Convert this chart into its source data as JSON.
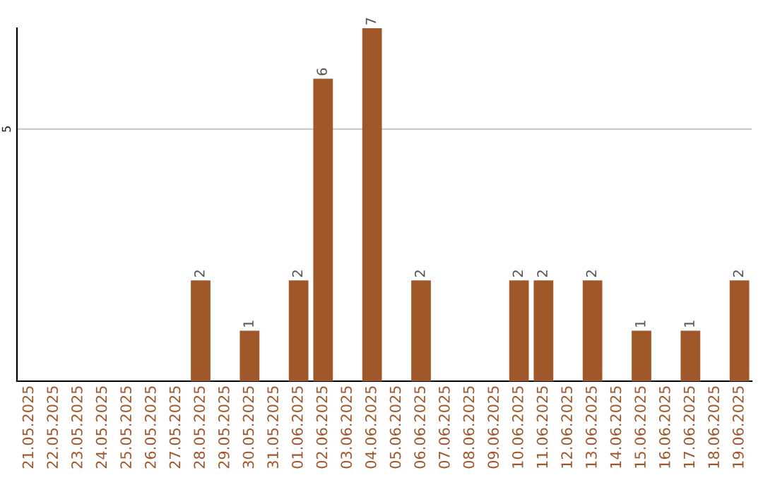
{
  "chart_data": {
    "type": "bar",
    "categories": [
      "21.05.2025",
      "22.05.2025",
      "23.05.2025",
      "24.05.2025",
      "25.05.2025",
      "26.05.2025",
      "27.05.2025",
      "28.05.2025",
      "29.05.2025",
      "30.05.2025",
      "31.05.2025",
      "01.06.2025",
      "02.06.2025",
      "03.06.2025",
      "04.06.2025",
      "05.06.2025",
      "06.06.2025",
      "07.06.2025",
      "08.06.2025",
      "09.06.2025",
      "10.06.2025",
      "11.06.2025",
      "12.06.2025",
      "13.06.2025",
      "14.06.2025",
      "15.06.2025",
      "16.06.2025",
      "17.06.2025",
      "18.06.2025",
      "19.06.2025"
    ],
    "values": [
      0,
      0,
      0,
      0,
      0,
      0,
      0,
      2,
      0,
      1,
      0,
      2,
      6,
      0,
      7,
      0,
      2,
      0,
      0,
      0,
      2,
      2,
      0,
      2,
      0,
      1,
      0,
      1,
      0,
      2
    ],
    "value_labels": [
      null,
      null,
      null,
      null,
      null,
      null,
      null,
      "2",
      null,
      "1",
      null,
      "2",
      "6",
      null,
      "7",
      null,
      "2",
      null,
      null,
      null,
      "2",
      "2",
      null,
      "2",
      null,
      "1",
      null,
      "1",
      null,
      "2"
    ],
    "color": "#a0572a",
    "ylim": [
      0,
      7
    ],
    "yticks": [
      5
    ],
    "grid": "y",
    "legend": false
  }
}
